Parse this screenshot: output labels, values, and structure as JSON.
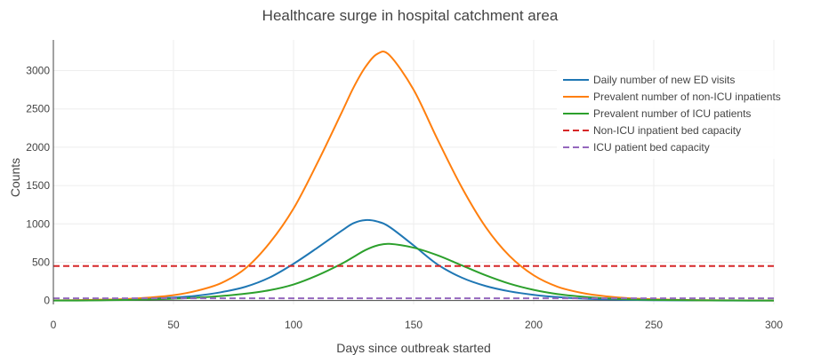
{
  "chart_data": {
    "type": "line",
    "title": "Healthcare surge in hospital catchment area",
    "xlabel": "Days since outbreak started",
    "ylabel": "Counts",
    "xlim": [
      0,
      300
    ],
    "ylim": [
      -50,
      3400
    ],
    "xticks": [
      0,
      50,
      100,
      150,
      200,
      250,
      300
    ],
    "yticks": [
      0,
      500,
      1000,
      1500,
      2000,
      2500,
      3000
    ],
    "grid": true,
    "legend_position": "top-right",
    "x": [
      0,
      10,
      20,
      30,
      40,
      50,
      60,
      70,
      80,
      90,
      100,
      110,
      120,
      125,
      130,
      135,
      140,
      150,
      160,
      170,
      180,
      190,
      200,
      210,
      220,
      230,
      240,
      250,
      260,
      270,
      280,
      290,
      300
    ],
    "series": [
      {
        "name": "Daily number of new ED visits",
        "color": "#1f77b4",
        "dash": "solid",
        "values": [
          2,
          4,
          10,
          17,
          28,
          40,
          65,
          110,
          180,
          300,
          480,
          690,
          910,
          1010,
          1050,
          1030,
          960,
          720,
          470,
          300,
          190,
          120,
          75,
          45,
          27,
          16,
          9,
          5,
          3,
          2,
          1,
          1,
          0
        ]
      },
      {
        "name": "Prevalent number of non-ICU inpatients",
        "color": "#ff7f0e",
        "dash": "solid",
        "values": [
          2,
          5,
          12,
          20,
          40,
          70,
          130,
          230,
          420,
          750,
          1200,
          1800,
          2450,
          2780,
          3050,
          3220,
          3200,
          2750,
          2100,
          1480,
          960,
          580,
          330,
          180,
          100,
          55,
          30,
          17,
          9,
          5,
          3,
          2,
          1
        ]
      },
      {
        "name": "Prevalent number of ICU patients",
        "color": "#2ca02c",
        "dash": "solid",
        "values": [
          0,
          1,
          4,
          8,
          14,
          24,
          38,
          60,
          90,
          135,
          210,
          330,
          480,
          570,
          660,
          720,
          740,
          690,
          590,
          460,
          330,
          220,
          140,
          85,
          52,
          30,
          17,
          10,
          6,
          3,
          2,
          1,
          1
        ]
      },
      {
        "name": "Non-ICU inpatient bed capacity",
        "color": "#d62728",
        "dash": "dashed",
        "constant": 450
      },
      {
        "name": "ICU patient bed capacity",
        "color": "#9467bd",
        "dash": "dashed",
        "constant": 30
      }
    ]
  }
}
